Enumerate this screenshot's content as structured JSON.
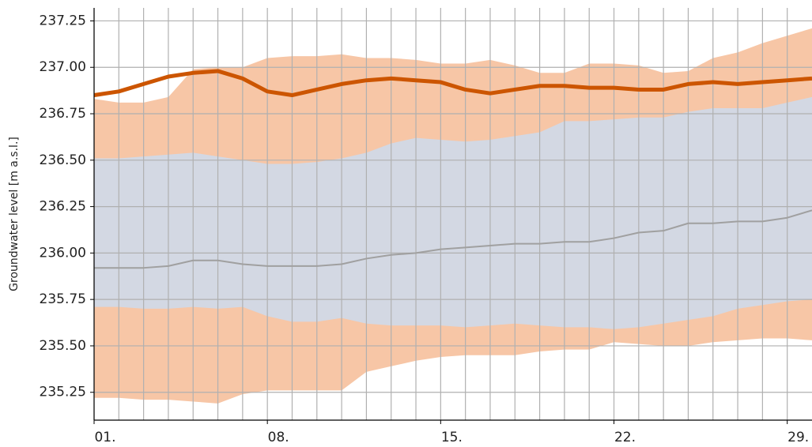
{
  "chart_data": {
    "type": "line",
    "y_label": "Groundwater level [m a.s.l.]",
    "x": [
      1,
      2,
      3,
      4,
      5,
      6,
      7,
      8,
      9,
      10,
      11,
      12,
      13,
      14,
      15,
      16,
      17,
      18,
      19,
      20,
      21,
      22,
      23,
      24,
      25,
      26,
      27,
      28,
      29,
      30
    ],
    "xlim": [
      1,
      30
    ],
    "xticks": [
      {
        "value": 1,
        "label": "01."
      },
      {
        "value": 8,
        "label": "08."
      },
      {
        "value": 15,
        "label": "15."
      },
      {
        "value": 22,
        "label": "22."
      },
      {
        "value": 29,
        "label": "29."
      }
    ],
    "xminorticks": [
      1,
      2,
      3,
      4,
      5,
      6,
      7,
      8,
      9,
      10,
      11,
      12,
      13,
      14,
      15,
      16,
      17,
      18,
      19,
      20,
      21,
      22,
      23,
      24,
      25,
      26,
      27,
      28,
      29
    ],
    "ylim": [
      235.1,
      237.32
    ],
    "yticks": [
      235.25,
      {
        "value": 235.5,
        "label": "235.50"
      },
      235.75,
      {
        "value": 236,
        "label": "236.00"
      },
      236.25,
      {
        "value": 236.5,
        "label": "236.50"
      },
      236.75,
      {
        "value": 237,
        "label": "237.00"
      },
      237.25
    ],
    "grid": true,
    "bands": [
      {
        "color": "#f7c6a6",
        "lower": [
          235.22,
          235.22,
          235.21,
          235.21,
          235.2,
          235.19,
          235.24,
          235.26,
          235.26,
          235.26,
          235.26,
          235.36,
          235.39,
          235.42,
          235.44,
          235.45,
          235.45,
          235.45,
          235.47,
          235.48,
          235.48,
          235.52,
          235.51,
          235.5,
          235.5,
          235.52,
          235.53,
          235.54,
          235.54,
          235.53
        ],
        "upper": [
          236.83,
          236.81,
          236.81,
          236.84,
          236.99,
          237.0,
          237.0,
          237.05,
          237.06,
          237.06,
          237.07,
          237.05,
          237.05,
          237.04,
          237.02,
          237.02,
          237.04,
          237.01,
          236.97,
          236.97,
          237.02,
          237.02,
          237.01,
          236.97,
          236.98,
          237.05,
          237.08,
          237.13,
          237.17,
          237.21
        ]
      },
      {
        "color": "#d3d8e3",
        "lower": [
          235.71,
          235.71,
          235.7,
          235.7,
          235.71,
          235.7,
          235.71,
          235.66,
          235.63,
          235.63,
          235.65,
          235.62,
          235.61,
          235.61,
          235.61,
          235.6,
          235.61,
          235.62,
          235.61,
          235.6,
          235.6,
          235.59,
          235.6,
          235.62,
          235.64,
          235.66,
          235.7,
          235.72,
          235.74,
          235.75
        ],
        "upper": [
          236.51,
          236.51,
          236.52,
          236.53,
          236.54,
          236.52,
          236.5,
          236.48,
          236.48,
          236.49,
          236.51,
          236.54,
          236.59,
          236.62,
          236.61,
          236.6,
          236.61,
          236.63,
          236.65,
          236.71,
          236.71,
          236.72,
          236.73,
          236.73,
          236.76,
          236.78,
          236.78,
          236.78,
          236.81,
          236.84
        ]
      }
    ],
    "series": [
      {
        "color": "#a0a0a0",
        "width": 2,
        "values": [
          235.92,
          235.92,
          235.92,
          235.93,
          235.96,
          235.96,
          235.94,
          235.93,
          235.93,
          235.93,
          235.94,
          235.97,
          235.99,
          236.0,
          236.02,
          236.03,
          236.04,
          236.05,
          236.05,
          236.06,
          236.06,
          236.08,
          236.11,
          236.12,
          236.16,
          236.16,
          236.17,
          236.17,
          236.19,
          236.23
        ]
      },
      {
        "color": "#cc5500",
        "width": 5,
        "values": [
          236.85,
          236.87,
          236.91,
          236.95,
          236.97,
          236.98,
          236.94,
          236.87,
          236.85,
          236.88,
          236.91,
          236.93,
          236.94,
          236.93,
          236.92,
          236.88,
          236.86,
          236.88,
          236.9,
          236.9,
          236.89,
          236.89,
          236.88,
          236.88,
          236.91,
          236.92,
          236.91,
          236.92,
          236.93,
          236.94
        ]
      }
    ]
  }
}
